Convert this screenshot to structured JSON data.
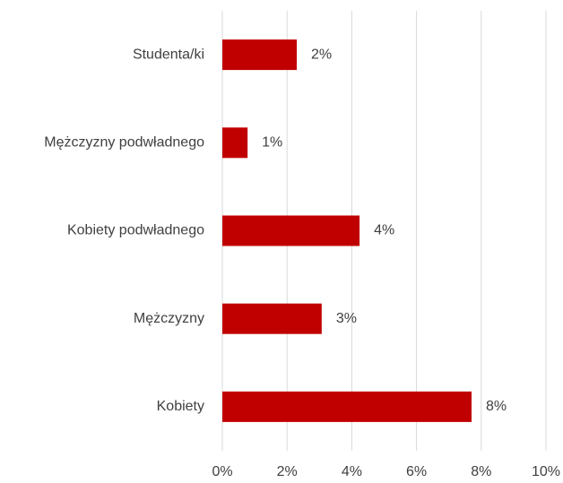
{
  "chart_data": {
    "type": "hbar",
    "categories": [
      "Studenta/ki",
      "Mężczyzny podwładnego",
      "Kobiety podwładnego",
      "Mężczyzny",
      "Kobiety"
    ],
    "values": [
      2.3,
      0.78,
      4.24,
      3.07,
      7.7
    ],
    "value_labels": [
      "2%",
      "1%",
      "4%",
      "3%",
      "8%"
    ],
    "color": "#c00000",
    "xlim": [
      0,
      10
    ],
    "xticks": [
      {
        "value": 0,
        "label": "0%"
      },
      {
        "value": 2,
        "label": "2%"
      },
      {
        "value": 4,
        "label": "4%"
      },
      {
        "value": 6,
        "label": "6%"
      },
      {
        "value": 8,
        "label": "8%"
      },
      {
        "value": 10,
        "label": "10%"
      }
    ],
    "grid": true
  }
}
